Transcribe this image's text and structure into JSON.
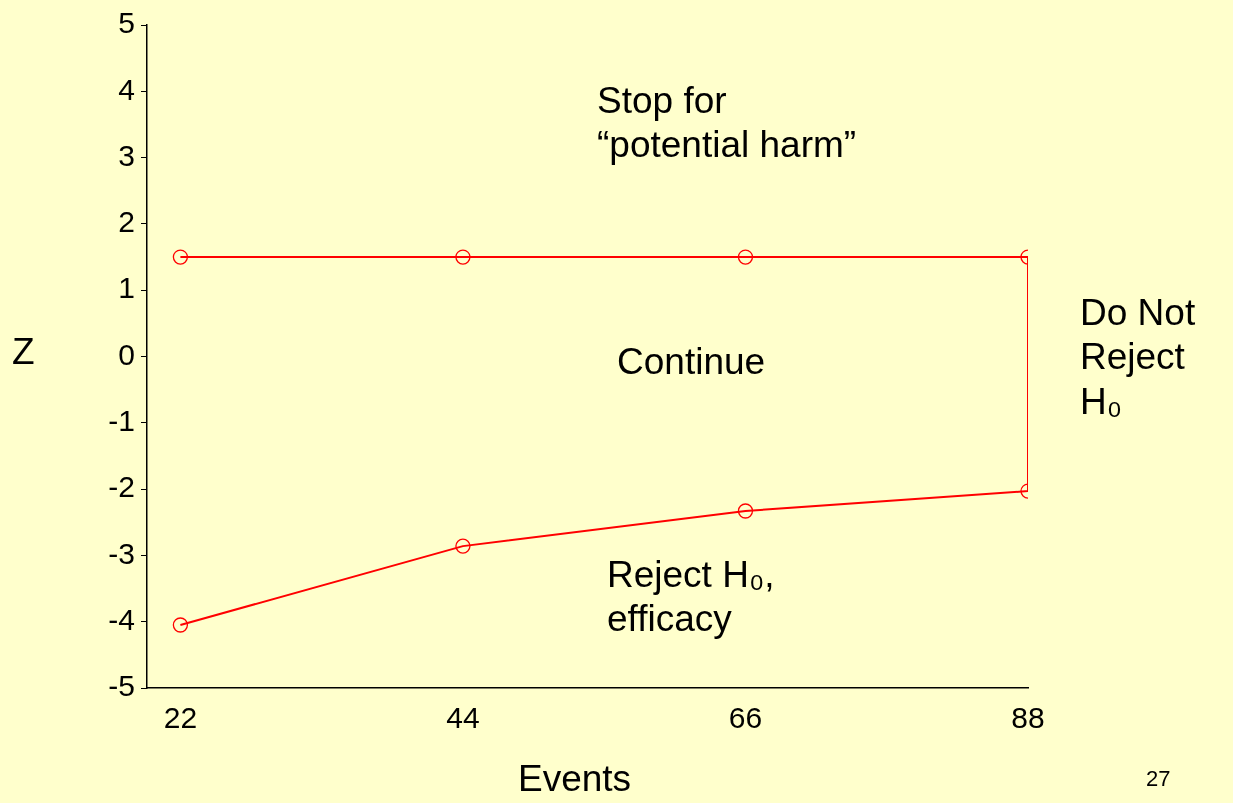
{
  "chart_data": {
    "type": "line",
    "xlabel": "Events",
    "ylabel": "Z",
    "annotations": [
      "Stop for\n“potential harm”",
      "Continue",
      "Reject H₀,\nefficacy",
      "Do Not\nReject\nH₀",
      "27"
    ],
    "series": [
      {
        "color": "#ff0000",
        "x": [
          22,
          44,
          66,
          88,
          88,
          66,
          44,
          22
        ],
        "values": [
          1.5,
          1.5,
          1.5,
          1.5,
          -2.03,
          -2.33,
          -2.86,
          -4.05
        ]
      }
    ],
    "xlim": [
      19.4,
      88
    ],
    "xticks": [
      22,
      44,
      66,
      88
    ],
    "ylim": [
      -5,
      5
    ],
    "yticks": [
      -5,
      -4,
      -3,
      -2,
      -1,
      0,
      1,
      2,
      3,
      4,
      5
    ],
    "marker": "circle",
    "line_style": "solid"
  }
}
